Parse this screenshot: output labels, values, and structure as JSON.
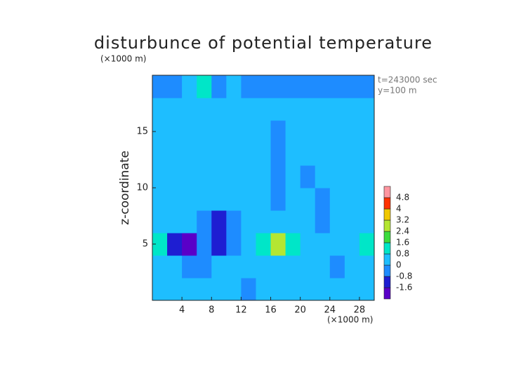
{
  "chart_data": {
    "type": "contour",
    "title": "disturbunce of potential temperature",
    "y_unit": "(×1000 m)",
    "x_unit": "(×1000 m)",
    "ylabel": "z-coordinate",
    "annotations": [
      "t=243000 sec",
      "y=100 m"
    ],
    "xlim": [
      0,
      30
    ],
    "ylim": [
      0,
      20
    ],
    "xticks": [
      4,
      8,
      12,
      16,
      20,
      24,
      28
    ],
    "yticks": [
      5,
      10,
      15
    ],
    "x": [
      1,
      3,
      5,
      7,
      9,
      11,
      13,
      15,
      17,
      19,
      21,
      23,
      25,
      27,
      29
    ],
    "y": [
      1,
      3,
      5,
      7,
      9,
      11,
      13,
      15,
      17,
      19
    ],
    "values": [
      [
        0.3,
        0.3,
        0.5,
        0.3,
        0.3,
        0.3,
        -0.4,
        0.3,
        0.3,
        0.3,
        0.3,
        0.3,
        0.3,
        0.3,
        0.3
      ],
      [
        0.5,
        0.3,
        -0.5,
        -0.3,
        0.3,
        0.3,
        0.3,
        0.3,
        0.3,
        0.3,
        0.3,
        0.3,
        -0.2,
        0.5,
        0.3
      ],
      [
        0.8,
        -1.0,
        -1.7,
        -0.8,
        -1.0,
        -0.3,
        0.5,
        1.5,
        2.5,
        0.8,
        0.3,
        0.3,
        0.5,
        0.3,
        0.8
      ],
      [
        0.3,
        0.3,
        0.3,
        -0.3,
        -1.2,
        -0.3,
        0.3,
        0.3,
        0.3,
        0.3,
        0.3,
        -0.5,
        0.3,
        0.3,
        0.3
      ],
      [
        0.3,
        0.3,
        0.3,
        0.3,
        0.3,
        0.3,
        0.3,
        0.3,
        -0.4,
        0.3,
        0.3,
        -0.5,
        0.3,
        0.3,
        0.3
      ],
      [
        0.3,
        0.3,
        0.3,
        0.3,
        0.3,
        0.3,
        0.3,
        0.3,
        -0.3,
        0.3,
        -0.3,
        0.3,
        0.3,
        0.3,
        0.3
      ],
      [
        0.3,
        0.3,
        0.3,
        0.3,
        0.3,
        0.3,
        0.3,
        0.3,
        -0.3,
        0.3,
        0.3,
        0.3,
        0.3,
        0.3,
        0.3
      ],
      [
        0.3,
        0.3,
        0.3,
        0.3,
        0.3,
        0.3,
        0.3,
        0.3,
        -0.5,
        0.3,
        0.3,
        0.3,
        0.3,
        0.3,
        0.3
      ],
      [
        0.3,
        0.3,
        0.3,
        0.3,
        0.3,
        0.3,
        0.3,
        0.3,
        0.3,
        0.3,
        0.3,
        0.3,
        0.3,
        0.3,
        0.3
      ],
      [
        -0.3,
        -0.3,
        0.3,
        1.5,
        -0.2,
        0.3,
        -0.3,
        -0.3,
        -0.3,
        -0.3,
        -0.4,
        -0.6,
        -0.3,
        -0.4,
        -0.3
      ]
    ],
    "levels": [
      -1.6,
      -0.8,
      0,
      0.8,
      1.6,
      2.4,
      3.2,
      4,
      4.8
    ],
    "colors": [
      "#5a00c8",
      "#1e1ed2",
      "#1e8cff",
      "#1ebeff",
      "#00e6c8",
      "#3cdc3c",
      "#b4e632",
      "#f0c800",
      "#ff3200",
      "#ff96a0"
    ]
  }
}
